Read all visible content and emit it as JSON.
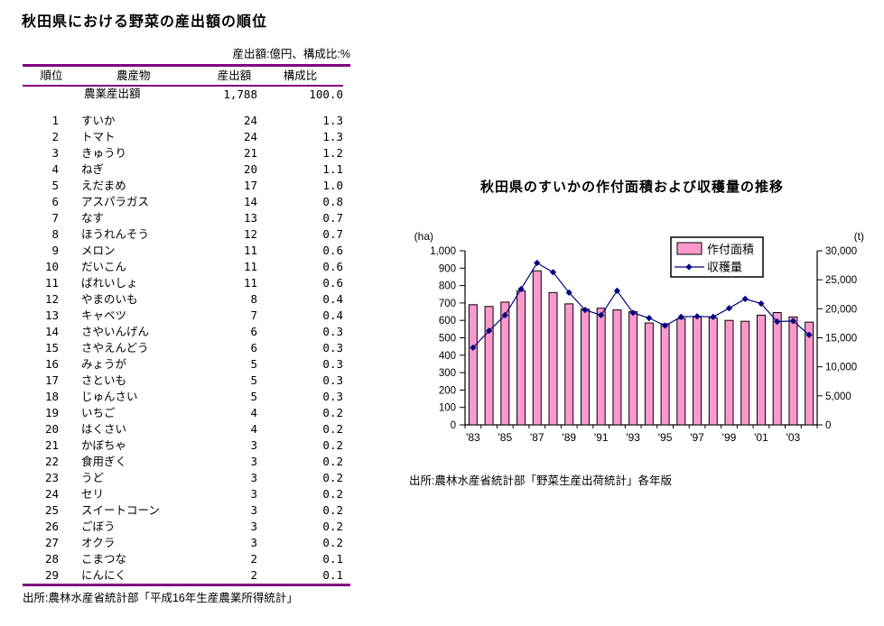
{
  "left": {
    "title": "秋田県における野菜の産出額の順位",
    "units_note": "産出額:億円、構成比:%",
    "table": {
      "headers": [
        "順位",
        "農産物",
        "産出額",
        "構成比"
      ],
      "total": {
        "name": "農業産出額",
        "value": "1,788",
        "share": "100.0"
      },
      "rows": [
        [
          1,
          "すいか",
          24,
          "1.3"
        ],
        [
          2,
          "トマト",
          24,
          "1.3"
        ],
        [
          3,
          "きゅうり",
          21,
          "1.2"
        ],
        [
          4,
          "ねぎ",
          20,
          "1.1"
        ],
        [
          5,
          "えだまめ",
          17,
          "1.0"
        ],
        [
          6,
          "アスパラガス",
          14,
          "0.8"
        ],
        [
          7,
          "なす",
          13,
          "0.7"
        ],
        [
          8,
          "ほうれんそう",
          12,
          "0.7"
        ],
        [
          9,
          "メロン",
          11,
          "0.6"
        ],
        [
          10,
          "だいこん",
          11,
          "0.6"
        ],
        [
          11,
          "ばれいしょ",
          11,
          "0.6"
        ],
        [
          12,
          "やまのいも",
          8,
          "0.4"
        ],
        [
          13,
          "キャベツ",
          7,
          "0.4"
        ],
        [
          14,
          "さやいんげん",
          6,
          "0.3"
        ],
        [
          15,
          "さやえんどう",
          6,
          "0.3"
        ],
        [
          16,
          "みょうが",
          5,
          "0.3"
        ],
        [
          17,
          "さといも",
          5,
          "0.3"
        ],
        [
          18,
          "じゅんさい",
          5,
          "0.3"
        ],
        [
          19,
          "いちご",
          4,
          "0.2"
        ],
        [
          20,
          "はくさい",
          4,
          "0.2"
        ],
        [
          21,
          "かぼちゃ",
          3,
          "0.2"
        ],
        [
          22,
          "食用ぎく",
          3,
          "0.2"
        ],
        [
          23,
          "うど",
          3,
          "0.2"
        ],
        [
          24,
          "セリ",
          3,
          "0.2"
        ],
        [
          25,
          "スイートコーン",
          3,
          "0.2"
        ],
        [
          26,
          "ごぼう",
          3,
          "0.2"
        ],
        [
          27,
          "オクラ",
          3,
          "0.2"
        ],
        [
          28,
          "こまつな",
          2,
          "0.1"
        ],
        [
          29,
          "にんにく",
          2,
          "0.1"
        ]
      ]
    },
    "source": "出所:農林水産省統計部「平成16年生産農業所得統計」"
  },
  "right": {
    "chart_title": "秋田県のすいかの作付面積および収穫量の推移",
    "source": "出所:農林水産省統計部「野菜生産出荷統計」各年版"
  },
  "colors": {
    "table_rule": "#800080",
    "bar_fill": "#FF99CC",
    "bar_stroke": "#000000",
    "line_color": "#000080"
  },
  "chart_data": {
    "type": "bar",
    "title": "秋田県のすいかの作付面積および収穫量の推移",
    "x": [
      "'83",
      "'84",
      "'85",
      "'86",
      "'87",
      "'88",
      "'89",
      "'90",
      "'91",
      "'92",
      "'93",
      "'94",
      "'95",
      "'96",
      "'97",
      "'98",
      "'99",
      "'00",
      "'01",
      "'02",
      "'03",
      "'04"
    ],
    "x_tick_labels": [
      "'83",
      "'85",
      "'87",
      "'89",
      "'91",
      "'93",
      "'95",
      "'97",
      "'99",
      "'01",
      "'03"
    ],
    "series": [
      {
        "name": "作付面積",
        "type": "bar",
        "axis": "left",
        "unit": "ha",
        "color": "#FF99CC",
        "values": [
          690,
          680,
          705,
          770,
          885,
          760,
          695,
          665,
          670,
          660,
          650,
          585,
          580,
          610,
          620,
          615,
          600,
          595,
          630,
          645,
          620,
          590
        ]
      },
      {
        "name": "収穫量",
        "type": "line",
        "axis": "right",
        "unit": "t",
        "color": "#000080",
        "values": [
          13300,
          16200,
          18900,
          23400,
          27900,
          26300,
          22800,
          19800,
          18900,
          23100,
          19300,
          18400,
          17100,
          18600,
          18700,
          18600,
          20100,
          21700,
          20900,
          17800,
          17900,
          15500
        ]
      }
    ],
    "left_axis": {
      "label": "(ha)",
      "min": 0,
      "max": 1000,
      "step": 100
    },
    "right_axis": {
      "label": "(t)",
      "min": 0,
      "max": 30000,
      "step": 5000
    },
    "grid": false,
    "legend_position": "top-right"
  }
}
